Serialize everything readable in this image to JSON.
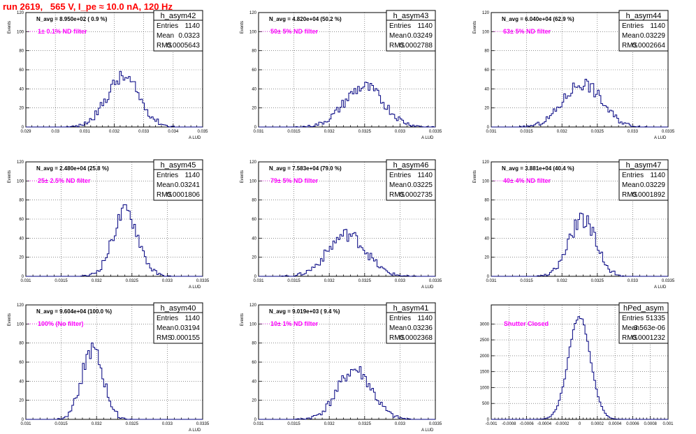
{
  "page": {
    "title": "run 2619,   565 V, I_pe ≈ 10.0 nA, 120 Hz"
  },
  "chart_data": [
    {
      "type": "bar",
      "name": "h_asym42",
      "ylabel": "Events",
      "xlabel": "A_LUD",
      "navg": "N_avg = 8.950e+02 ( 0.9 %)",
      "filter": "1± 0.1% ND filter",
      "stats": {
        "entries": "1140",
        "mean": "0.0323",
        "rms": "0.0005643"
      },
      "xlim": [
        0.029,
        0.035
      ],
      "ylim": [
        0,
        120
      ],
      "xticks": [
        0.029,
        0.03,
        0.031,
        0.032,
        0.033,
        0.034,
        0.035
      ],
      "xtick_labels": [
        "0.029",
        "0.03",
        "0.031",
        "0.032",
        "0.033",
        "0.034",
        "0.035"
      ],
      "yticks": [
        0,
        20,
        40,
        60,
        80,
        100,
        120
      ],
      "center": 0.0323,
      "sigma": 0.00056,
      "peak": 52,
      "nbins": 100,
      "seed": 42
    },
    {
      "type": "bar",
      "name": "h_asym43",
      "ylabel": "Events",
      "xlabel": "A_LUD",
      "navg": "N_avg = 4.820e+04 (50.2 %)",
      "filter": "50± 5% ND filter",
      "stats": {
        "entries": "1140",
        "mean": "0.03249",
        "rms": "0.0002788"
      },
      "xlim": [
        0.031,
        0.0335
      ],
      "ylim": [
        0,
        120
      ],
      "xticks": [
        0.031,
        0.0315,
        0.032,
        0.0325,
        0.033,
        0.0335
      ],
      "xtick_labels": [
        "0.031",
        "0.0315",
        "0.032",
        "0.0325",
        "0.033",
        "0.0335"
      ],
      "yticks": [
        0,
        20,
        40,
        60,
        80,
        100,
        120
      ],
      "center": 0.03249,
      "sigma": 0.00028,
      "peak": 42,
      "nbins": 100,
      "seed": 43
    },
    {
      "type": "bar",
      "name": "h_asym44",
      "ylabel": "Events",
      "xlabel": "A_LUD",
      "navg": "N_avg = 6.040e+04 (62.9 %)",
      "filter": "63± 5% ND filter",
      "stats": {
        "entries": "1140",
        "mean": "0.03229",
        "rms": "0.0002664"
      },
      "xlim": [
        0.031,
        0.0335
      ],
      "ylim": [
        0,
        120
      ],
      "xticks": [
        0.031,
        0.0315,
        0.032,
        0.0325,
        0.033,
        0.0335
      ],
      "xtick_labels": [
        "0.031",
        "0.0315",
        "0.032",
        "0.0325",
        "0.033",
        "0.0335"
      ],
      "yticks": [
        0,
        20,
        40,
        60,
        80,
        100,
        120
      ],
      "center": 0.03229,
      "sigma": 0.00027,
      "peak": 46,
      "nbins": 100,
      "seed": 44
    },
    {
      "type": "bar",
      "name": "h_asym45",
      "ylabel": "Events",
      "xlabel": "A_LUD",
      "navg": "N_avg = 2.480e+04 (25.8 %)",
      "filter": "25± 2.5% ND filter",
      "stats": {
        "entries": "1140",
        "mean": "0.03241",
        "rms": "0.0001806"
      },
      "xlim": [
        0.031,
        0.0335
      ],
      "ylim": [
        0,
        120
      ],
      "xticks": [
        0.031,
        0.0315,
        0.032,
        0.0325,
        0.033,
        0.0335
      ],
      "xtick_labels": [
        "0.031",
        "0.0315",
        "0.032",
        "0.0325",
        "0.033",
        "0.0335"
      ],
      "yticks": [
        0,
        20,
        40,
        60,
        80,
        100,
        120
      ],
      "center": 0.03241,
      "sigma": 0.00018,
      "peak": 68,
      "nbins": 100,
      "seed": 45
    },
    {
      "type": "bar",
      "name": "h_asym46",
      "ylabel": "Events",
      "xlabel": "A_LUD",
      "navg": "N_avg = 7.583e+04 (79.0 %)",
      "filter": "79± 5% ND filter",
      "stats": {
        "entries": "1140",
        "mean": "0.03225",
        "rms": "0.0002735"
      },
      "xlim": [
        0.031,
        0.0335
      ],
      "ylim": [
        0,
        120
      ],
      "xticks": [
        0.031,
        0.0315,
        0.032,
        0.0325,
        0.033,
        0.0335
      ],
      "xtick_labels": [
        "0.031",
        "0.0315",
        "0.032",
        "0.0325",
        "0.033",
        "0.0335"
      ],
      "yticks": [
        0,
        20,
        40,
        60,
        80,
        100,
        120
      ],
      "center": 0.03225,
      "sigma": 0.00027,
      "peak": 44,
      "nbins": 100,
      "seed": 46
    },
    {
      "type": "bar",
      "name": "h_asym47",
      "ylabel": "Events",
      "xlabel": "A_LUD",
      "navg": "N_avg = 3.881e+04 (40.4 %)",
      "filter": "40± 4% ND filter",
      "stats": {
        "entries": "1140",
        "mean": "0.03229",
        "rms": "0.0001892"
      },
      "xlim": [
        0.031,
        0.0335
      ],
      "ylim": [
        0,
        120
      ],
      "xticks": [
        0.031,
        0.0315,
        0.032,
        0.0325,
        0.033,
        0.0335
      ],
      "xtick_labels": [
        "0.031",
        "0.0315",
        "0.032",
        "0.0325",
        "0.033",
        "0.0335"
      ],
      "yticks": [
        0,
        20,
        40,
        60,
        80,
        100,
        120
      ],
      "center": 0.03229,
      "sigma": 0.00019,
      "peak": 60,
      "nbins": 100,
      "seed": 47
    },
    {
      "type": "bar",
      "name": "h_asym40",
      "ylabel": "Events",
      "xlabel": "A_LUD",
      "navg": "N_avg = 9.604e+04 (100.0 %)",
      "filter": "100% (No filter)",
      "stats": {
        "entries": "1140",
        "mean": "0.03194",
        "rms": "0.000155"
      },
      "xlim": [
        0.031,
        0.0335
      ],
      "ylim": [
        0,
        120
      ],
      "xticks": [
        0.031,
        0.0315,
        0.032,
        0.0325,
        0.033,
        0.0335
      ],
      "xtick_labels": [
        "0.031",
        "0.0315",
        "0.032",
        "0.0325",
        "0.033",
        "0.0335"
      ],
      "yticks": [
        0,
        20,
        40,
        60,
        80,
        100,
        120
      ],
      "center": 0.03194,
      "sigma": 0.000155,
      "peak": 72,
      "nbins": 100,
      "seed": 40
    },
    {
      "type": "bar",
      "name": "h_asym41",
      "ylabel": "Events",
      "xlabel": "A_LUD",
      "navg": "N_avg = 9.019e+03 ( 9.4 %)",
      "filter": "10± 1% ND filter",
      "stats": {
        "entries": "1140",
        "mean": "0.03236",
        "rms": "0.0002368"
      },
      "xlim": [
        0.031,
        0.0335
      ],
      "ylim": [
        0,
        120
      ],
      "xticks": [
        0.031,
        0.0315,
        0.032,
        0.0325,
        0.033,
        0.0335
      ],
      "xtick_labels": [
        "0.031",
        "0.0315",
        "0.032",
        "0.0325",
        "0.033",
        "0.0335"
      ],
      "yticks": [
        0,
        20,
        40,
        60,
        80,
        100,
        120
      ],
      "center": 0.03236,
      "sigma": 0.00024,
      "peak": 52,
      "nbins": 100,
      "seed": 41
    },
    {
      "type": "bar",
      "name": "hPed_asym",
      "ylabel": "",
      "xlabel": "",
      "navg": "",
      "filter": "Shutter Closed",
      "stats": {
        "entries": "51335",
        "mean": "-3.563e-06",
        "rms": "0.0001232"
      },
      "xlim": [
        -0.001,
        0.001
      ],
      "ylim": [
        0,
        3600
      ],
      "xticks": [
        -0.001,
        -0.0008,
        -0.0006,
        -0.0004,
        -0.0002,
        0,
        0.0002,
        0.0004,
        0.0006,
        0.0008,
        0.001
      ],
      "xtick_labels": [
        "-0.001",
        "-0.0008",
        "-0.0006",
        "-0.0004",
        "-0.0002",
        "0",
        "0.0002",
        "0.0004",
        "0.0006",
        "0.0008",
        "0.001"
      ],
      "yticks": [
        0,
        500,
        1000,
        1500,
        2000,
        2500,
        3000
      ],
      "center": -3.6e-06,
      "sigma": 0.000123,
      "peak": 3250,
      "nbins": 100,
      "seed": 99
    }
  ]
}
